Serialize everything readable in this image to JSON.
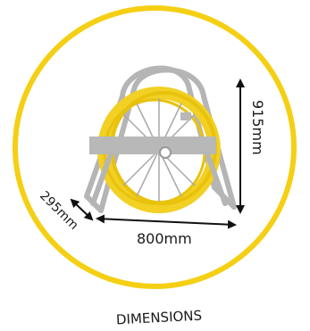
{
  "dimensions": {
    "height_label": "915mm",
    "width_label": "800mm",
    "depth_label": "295mm"
  },
  "caption": "DIMENSIONS",
  "colors": {
    "ring": "#f5cf14",
    "coil": "#f2d024",
    "frame": "#b5b5b5",
    "arrow": "#111111"
  }
}
